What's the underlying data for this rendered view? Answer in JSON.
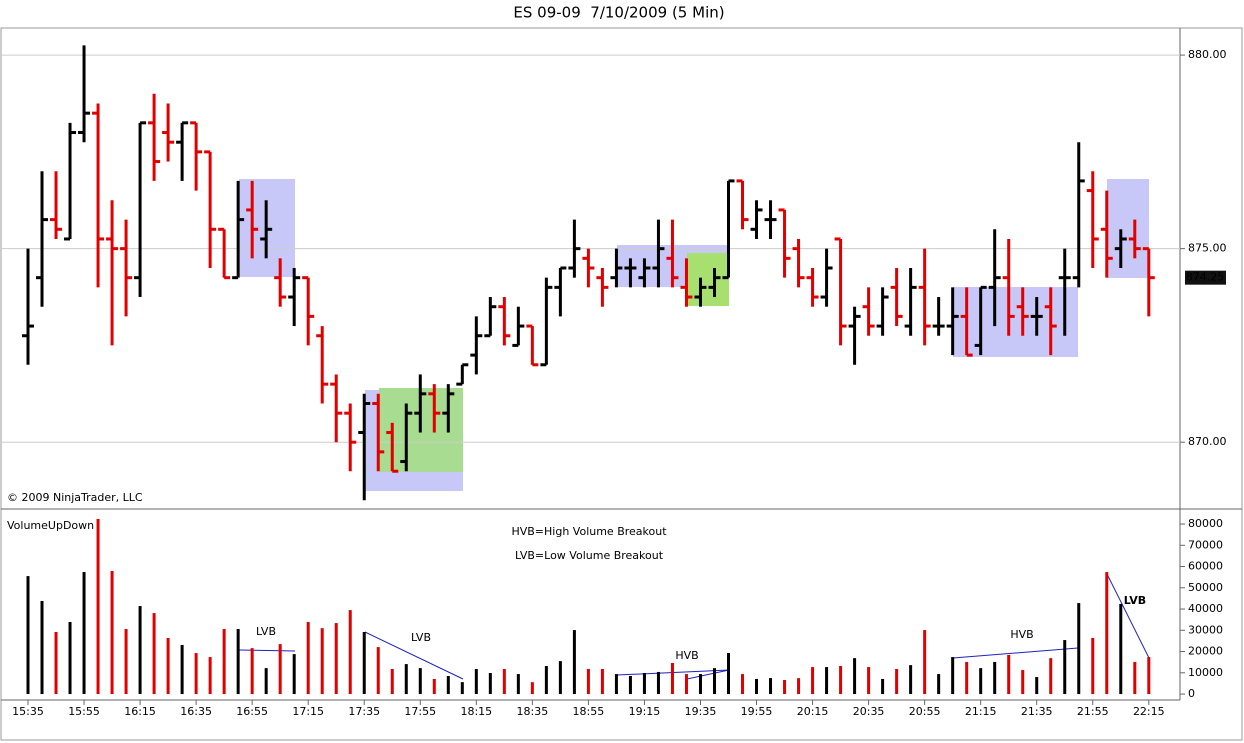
{
  "chart_data": [
    {
      "type": "ohlc",
      "title": "ES 09-09  7/10/2009 (5 Min)",
      "copyright": "© 2009 NinjaTrader, LLC",
      "categories": [
        "15:35",
        null,
        null,
        null,
        "15:55",
        null,
        null,
        null,
        "16:15",
        null,
        null,
        null,
        "16:35",
        null,
        null,
        null,
        "16:55",
        null,
        null,
        null,
        "17:15",
        null,
        null,
        null,
        "17:35",
        null,
        null,
        null,
        "17:55",
        null,
        null,
        null,
        "18:15",
        null,
        null,
        null,
        "18:35",
        null,
        null,
        null,
        "18:55",
        null,
        null,
        null,
        "19:15",
        null,
        null,
        null,
        "19:35",
        null,
        null,
        null,
        "19:55",
        null,
        null,
        null,
        "20:15",
        null,
        null,
        null,
        "20:35",
        null,
        null,
        null,
        "20:55",
        null,
        null,
        null,
        "21:15",
        null,
        null,
        null,
        "21:35",
        null,
        null,
        null,
        "21:55",
        null,
        null,
        null,
        "22:15"
      ],
      "open": [
        872.75,
        874.25,
        875.75,
        875.25,
        878.0,
        878.5,
        875.25,
        875.0,
        874.25,
        878.25,
        878.0,
        877.75,
        878.25,
        877.5,
        875.5,
        874.25,
        876.0,
        875.25,
        874.25,
        873.75,
        874.25,
        872.75,
        871.5,
        870.75,
        870.25,
        871.0,
        870.25,
        869.5,
        870.75,
        871.25,
        870.75,
        871.5,
        872.25,
        872.75,
        873.5,
        872.5,
        873.0,
        872.0,
        874.0,
        874.5,
        874.75,
        874.25,
        874.25,
        874.5,
        874.25,
        874.5,
        874.75,
        874.0,
        873.75,
        874.0,
        874.25,
        876.75,
        875.5,
        875.75,
        876.0,
        875.0,
        874.25,
        873.75,
        875.25,
        873.0,
        873.5,
        873.0,
        874.0,
        873.0,
        874.0,
        873.0,
        873.0,
        873.25,
        872.5,
        874.0,
        874.25,
        873.5,
        873.25,
        873.5,
        874.25,
        874.25,
        876.5,
        875.5,
        875.0,
        875.25,
        875.0
      ],
      "high": [
        875.0,
        877.0,
        877.0,
        878.25,
        880.25,
        878.75,
        876.25,
        875.75,
        878.25,
        879.0,
        878.75,
        878.25,
        878.25,
        877.5,
        875.5,
        876.75,
        876.75,
        876.25,
        874.75,
        874.5,
        874.25,
        873.0,
        871.75,
        871.0,
        871.25,
        871.25,
        870.5,
        871.0,
        871.75,
        871.5,
        871.5,
        872.0,
        873.25,
        873.75,
        873.75,
        873.5,
        873.0,
        874.25,
        874.5,
        875.75,
        875.0,
        874.5,
        875.0,
        874.75,
        874.75,
        875.75,
        875.75,
        874.75,
        874.25,
        874.5,
        876.75,
        876.75,
        876.25,
        876.25,
        876.0,
        875.25,
        874.5,
        875.0,
        875.25,
        873.5,
        874.0,
        874.0,
        874.5,
        874.5,
        875.0,
        873.75,
        874.0,
        874.0,
        874.0,
        875.5,
        875.25,
        874.0,
        873.75,
        874.0,
        875.0,
        877.75,
        877.0,
        876.5,
        875.5,
        875.75,
        875.0
      ],
      "low": [
        872.0,
        873.5,
        875.25,
        875.25,
        877.75,
        874.0,
        872.5,
        873.25,
        873.75,
        876.75,
        877.25,
        876.75,
        876.5,
        874.5,
        874.25,
        874.25,
        874.75,
        874.75,
        873.5,
        873.0,
        872.5,
        871.0,
        870.0,
        869.25,
        868.5,
        869.25,
        869.25,
        869.25,
        870.25,
        870.25,
        870.25,
        871.5,
        871.75,
        872.75,
        872.5,
        872.5,
        872.0,
        872.0,
        873.25,
        874.25,
        874.0,
        873.5,
        874.0,
        874.0,
        874.0,
        874.0,
        874.0,
        873.5,
        873.5,
        873.75,
        874.25,
        875.5,
        875.25,
        875.25,
        874.25,
        874.0,
        873.5,
        873.5,
        872.5,
        872.0,
        872.75,
        872.75,
        873.0,
        872.75,
        872.5,
        872.75,
        872.25,
        872.25,
        872.25,
        873.0,
        872.75,
        872.75,
        872.75,
        872.25,
        872.75,
        874.0,
        874.5,
        874.25,
        874.5,
        874.75,
        873.25
      ],
      "close": [
        873.0,
        875.75,
        875.5,
        878.0,
        878.5,
        875.25,
        875.0,
        874.25,
        878.25,
        877.25,
        877.75,
        878.25,
        877.5,
        875.5,
        874.25,
        875.75,
        875.5,
        875.5,
        873.75,
        874.25,
        873.25,
        871.5,
        870.75,
        870.0,
        871.0,
        869.75,
        869.25,
        870.75,
        871.25,
        870.75,
        871.25,
        872.0,
        872.75,
        873.5,
        872.75,
        873.0,
        872.0,
        874.0,
        874.5,
        875.0,
        874.5,
        874.0,
        874.5,
        874.5,
        874.5,
        875.0,
        874.25,
        873.75,
        874.0,
        874.25,
        876.75,
        875.75,
        876.0,
        875.75,
        874.75,
        874.25,
        873.75,
        874.5,
        873.0,
        873.25,
        873.0,
        873.75,
        873.25,
        874.0,
        873.0,
        873.0,
        873.25,
        872.25,
        874.0,
        874.25,
        873.25,
        873.25,
        873.25,
        873.0,
        874.25,
        876.75,
        875.25,
        874.75,
        875.25,
        875.0,
        874.25
      ],
      "up_color": "#000000",
      "down_color": "#e00000",
      "ylim": [
        868.3,
        880.7
      ],
      "yticks": [
        {
          "value": 870,
          "label": "870.00"
        },
        {
          "value": 875,
          "label": "875.00"
        },
        {
          "value": 880,
          "label": "880.00"
        }
      ],
      "grid": true
    },
    {
      "type": "bar",
      "name": "VolumeUpDown",
      "values": [
        55500,
        43800,
        29200,
        33900,
        57400,
        82400,
        57900,
        30600,
        41400,
        38100,
        26400,
        23100,
        19300,
        17400,
        30600,
        30600,
        21600,
        12200,
        23500,
        18800,
        33900,
        31000,
        33400,
        39500,
        29200,
        22100,
        11800,
        14100,
        12200,
        7100,
        8500,
        5600,
        11800,
        9900,
        11800,
        9400,
        5600,
        13200,
        15500,
        30100,
        11800,
        11800,
        9400,
        8500,
        9900,
        10400,
        14600,
        9400,
        9400,
        12200,
        19300,
        9400,
        7100,
        7500,
        6600,
        7500,
        12700,
        12700,
        13200,
        16900,
        12700,
        7100,
        11800,
        13600,
        30100,
        9400,
        17400,
        15100,
        12200,
        15100,
        18400,
        11300,
        8000,
        16900,
        25400,
        42800,
        26400,
        57400,
        42400,
        15100,
        17400
      ],
      "ylim": [
        -2800,
        86600
      ],
      "yticks": [
        0,
        10000,
        20000,
        30000,
        40000,
        50000,
        60000,
        70000,
        80000
      ],
      "annotations": [
        "HVB=High Volume Breakout",
        "LVB=Low Volume Breakout",
        "LVB",
        "LVB",
        "HVB",
        "HVB",
        "LVB"
      ]
    }
  ]
}
